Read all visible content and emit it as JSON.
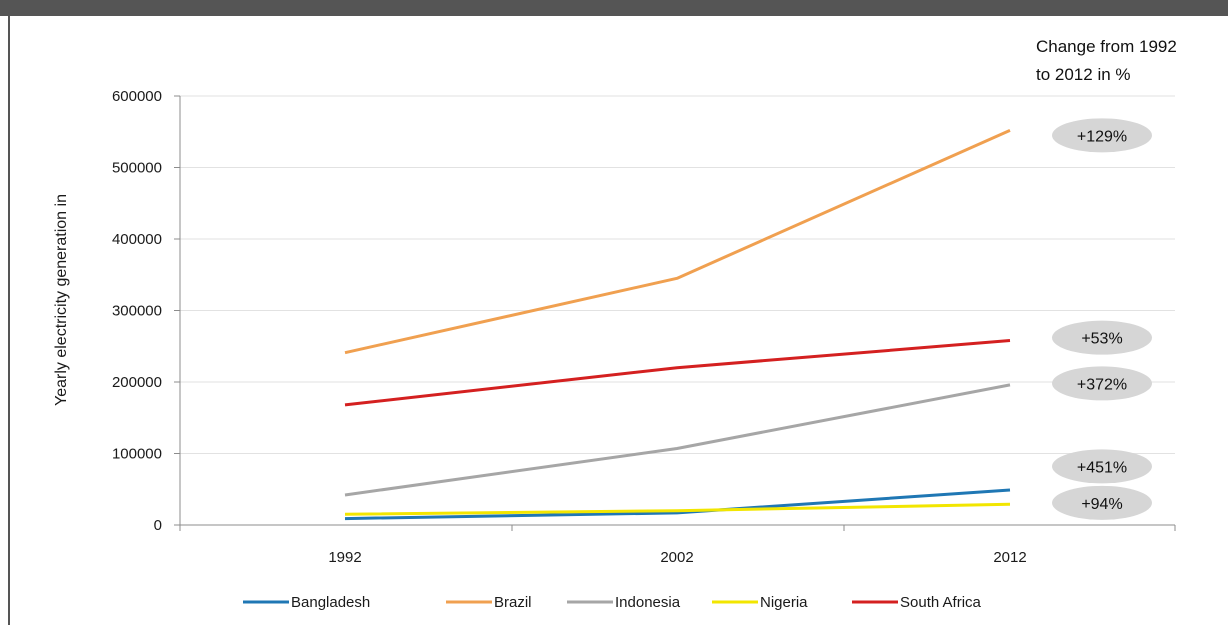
{
  "chart_data": {
    "type": "line",
    "ylabel": "Yearly electricity generation in",
    "xlabel": "",
    "x": [
      "1992",
      "2002",
      "2012"
    ],
    "ylim": [
      0,
      600000
    ],
    "yticks": [
      0,
      100000,
      200000,
      300000,
      400000,
      500000,
      600000
    ],
    "ytick_labels": [
      "0",
      "100000",
      "200000",
      "300000",
      "400000",
      "500000",
      "600000"
    ],
    "grid": "horizontal",
    "legend_position": "bottom",
    "series": [
      {
        "name": "Bangladesh",
        "color": "#1f77b4",
        "values": [
          9000,
          17000,
          49000
        ]
      },
      {
        "name": "Brazil",
        "color": "#f0a050",
        "values": [
          241000,
          345000,
          552000
        ]
      },
      {
        "name": "Indonesia",
        "color": "#a6a6a6",
        "values": [
          42000,
          107000,
          196000
        ]
      },
      {
        "name": "Nigeria",
        "color": "#f2e600",
        "values": [
          15000,
          20000,
          29000
        ]
      },
      {
        "name": "South Africa",
        "color": "#d42020",
        "values": [
          168000,
          220000,
          258000
        ]
      }
    ],
    "annotation_title": [
      "Change from 1992",
      "to 2012 in %"
    ],
    "annotations": [
      {
        "text": "+129%",
        "y": 545000
      },
      {
        "text": "+53%",
        "y": 262000
      },
      {
        "text": "+372%",
        "y": 198000
      },
      {
        "text": "+451%",
        "y": 82000
      },
      {
        "text": "+94%",
        "y": 31000
      }
    ]
  }
}
